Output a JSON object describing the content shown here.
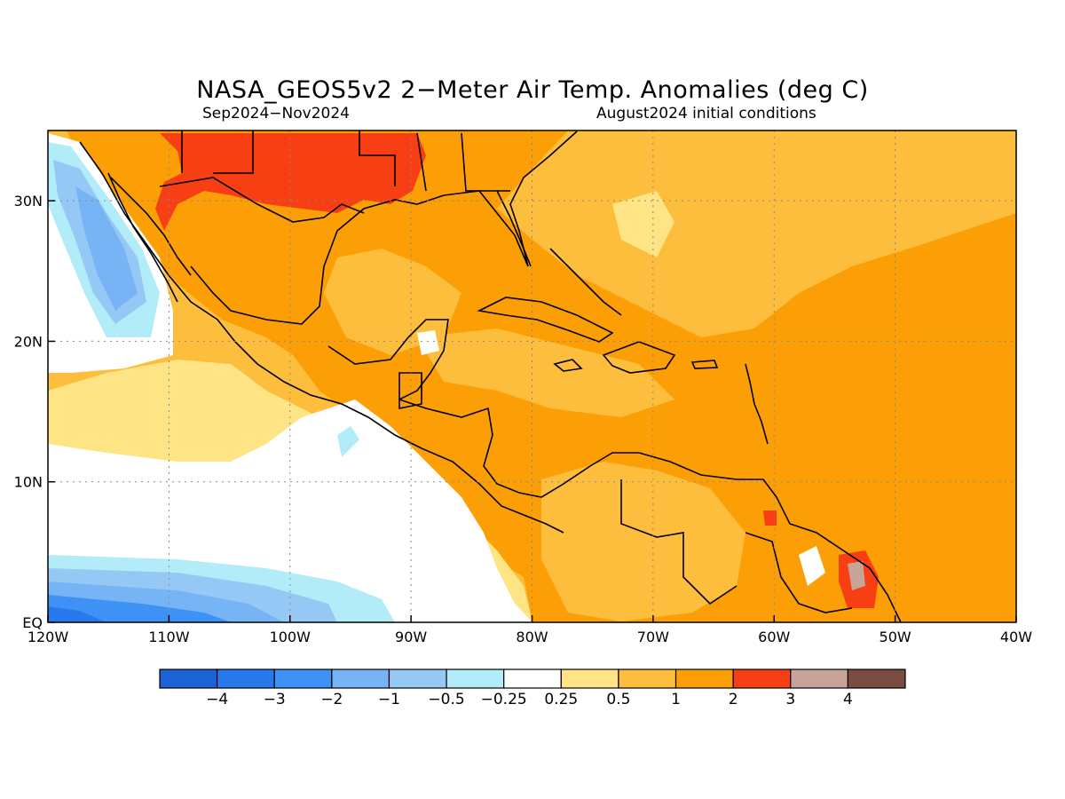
{
  "title": "NASA_GEOS5v2 2−Meter Air Temp. Anomalies (deg C)",
  "period": "Sep2024−Nov2024",
  "initial_conditions": "August2024 initial conditions",
  "map": {
    "lon_range": [
      -120,
      -40
    ],
    "lat_range": [
      0,
      35
    ],
    "lon_ticks": [
      {
        "value": -120,
        "label": "120W"
      },
      {
        "value": -110,
        "label": "110W"
      },
      {
        "value": -100,
        "label": "100W"
      },
      {
        "value": -90,
        "label": "90W"
      },
      {
        "value": -80,
        "label": "80W"
      },
      {
        "value": -70,
        "label": "70W"
      },
      {
        "value": -60,
        "label": "60W"
      },
      {
        "value": -50,
        "label": "50W"
      },
      {
        "value": -40,
        "label": "40W"
      }
    ],
    "lat_ticks": [
      {
        "value": 0,
        "label": "EQ"
      },
      {
        "value": 10,
        "label": "10N"
      },
      {
        "value": 20,
        "label": "20N"
      },
      {
        "value": 30,
        "label": "30N"
      }
    ],
    "grid": true
  },
  "colorbar": {
    "colors": [
      "#1a62d6",
      "#2a78ee",
      "#3e92f5",
      "#77b4f5",
      "#96c8f5",
      "#b2ecf8",
      "#ffffff",
      "#ffe486",
      "#fdbe3d",
      "#fc9f06",
      "#f73f13",
      "#c8a397",
      "#7a4b40"
    ],
    "labels": [
      "−4",
      "−3",
      "−2",
      "−1",
      "−0.5",
      "−0.25",
      "0.25",
      "0.5",
      "1",
      "2",
      "3",
      "4"
    ]
  }
}
